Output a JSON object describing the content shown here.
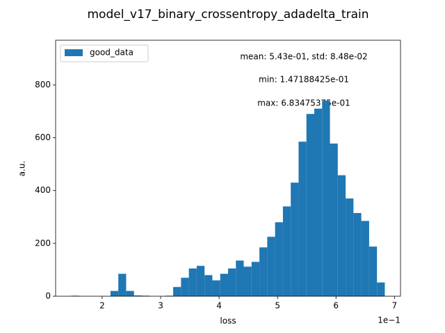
{
  "chart_data": {
    "type": "histogram",
    "title": "model_v17_binary_crossentropy_adadelta_train",
    "xlabel": "loss",
    "ylabel": "a.u.",
    "x_offset_label": "1e−1",
    "annotations": [
      "mean: 5.43e-01, std: 8.48e-02",
      "min: 1.47188425e-01",
      "max: 6.83475375e-01"
    ],
    "series": [
      {
        "name": "good_data",
        "color": "#1f77b4",
        "bins": [
          1.47188425,
          1.606,
          1.74,
          1.8741,
          2.0082,
          2.1422,
          2.2763,
          2.4104,
          2.5445,
          2.6785,
          2.8126,
          2.9467,
          3.0807,
          3.2148,
          3.3489,
          3.483,
          3.617,
          3.7511,
          3.8852,
          4.0192,
          4.1533,
          4.2874,
          4.4214,
          4.5555,
          4.6896,
          4.8237,
          4.9577,
          5.0918,
          5.2259,
          5.3599,
          5.494,
          5.6281,
          5.7621,
          5.8962,
          6.0303,
          6.1644,
          6.2984,
          6.4325,
          6.5666,
          6.7006,
          6.83475375
        ],
        "values": [
          2,
          0,
          0,
          0,
          0,
          20,
          85,
          20,
          3,
          2,
          0,
          0,
          2,
          35,
          70,
          105,
          115,
          80,
          60,
          85,
          105,
          135,
          112,
          130,
          185,
          225,
          280,
          340,
          430,
          585,
          690,
          710,
          740,
          578,
          458,
          370,
          315,
          285,
          188,
          52
        ]
      }
    ],
    "xlim": [
      1.204,
      7.103
    ],
    "ylim": [
      0,
      969
    ],
    "xticks": [
      2,
      3,
      4,
      5,
      6,
      7
    ],
    "yticks": [
      0,
      200,
      400,
      600,
      800
    ],
    "legend": "upper left"
  }
}
